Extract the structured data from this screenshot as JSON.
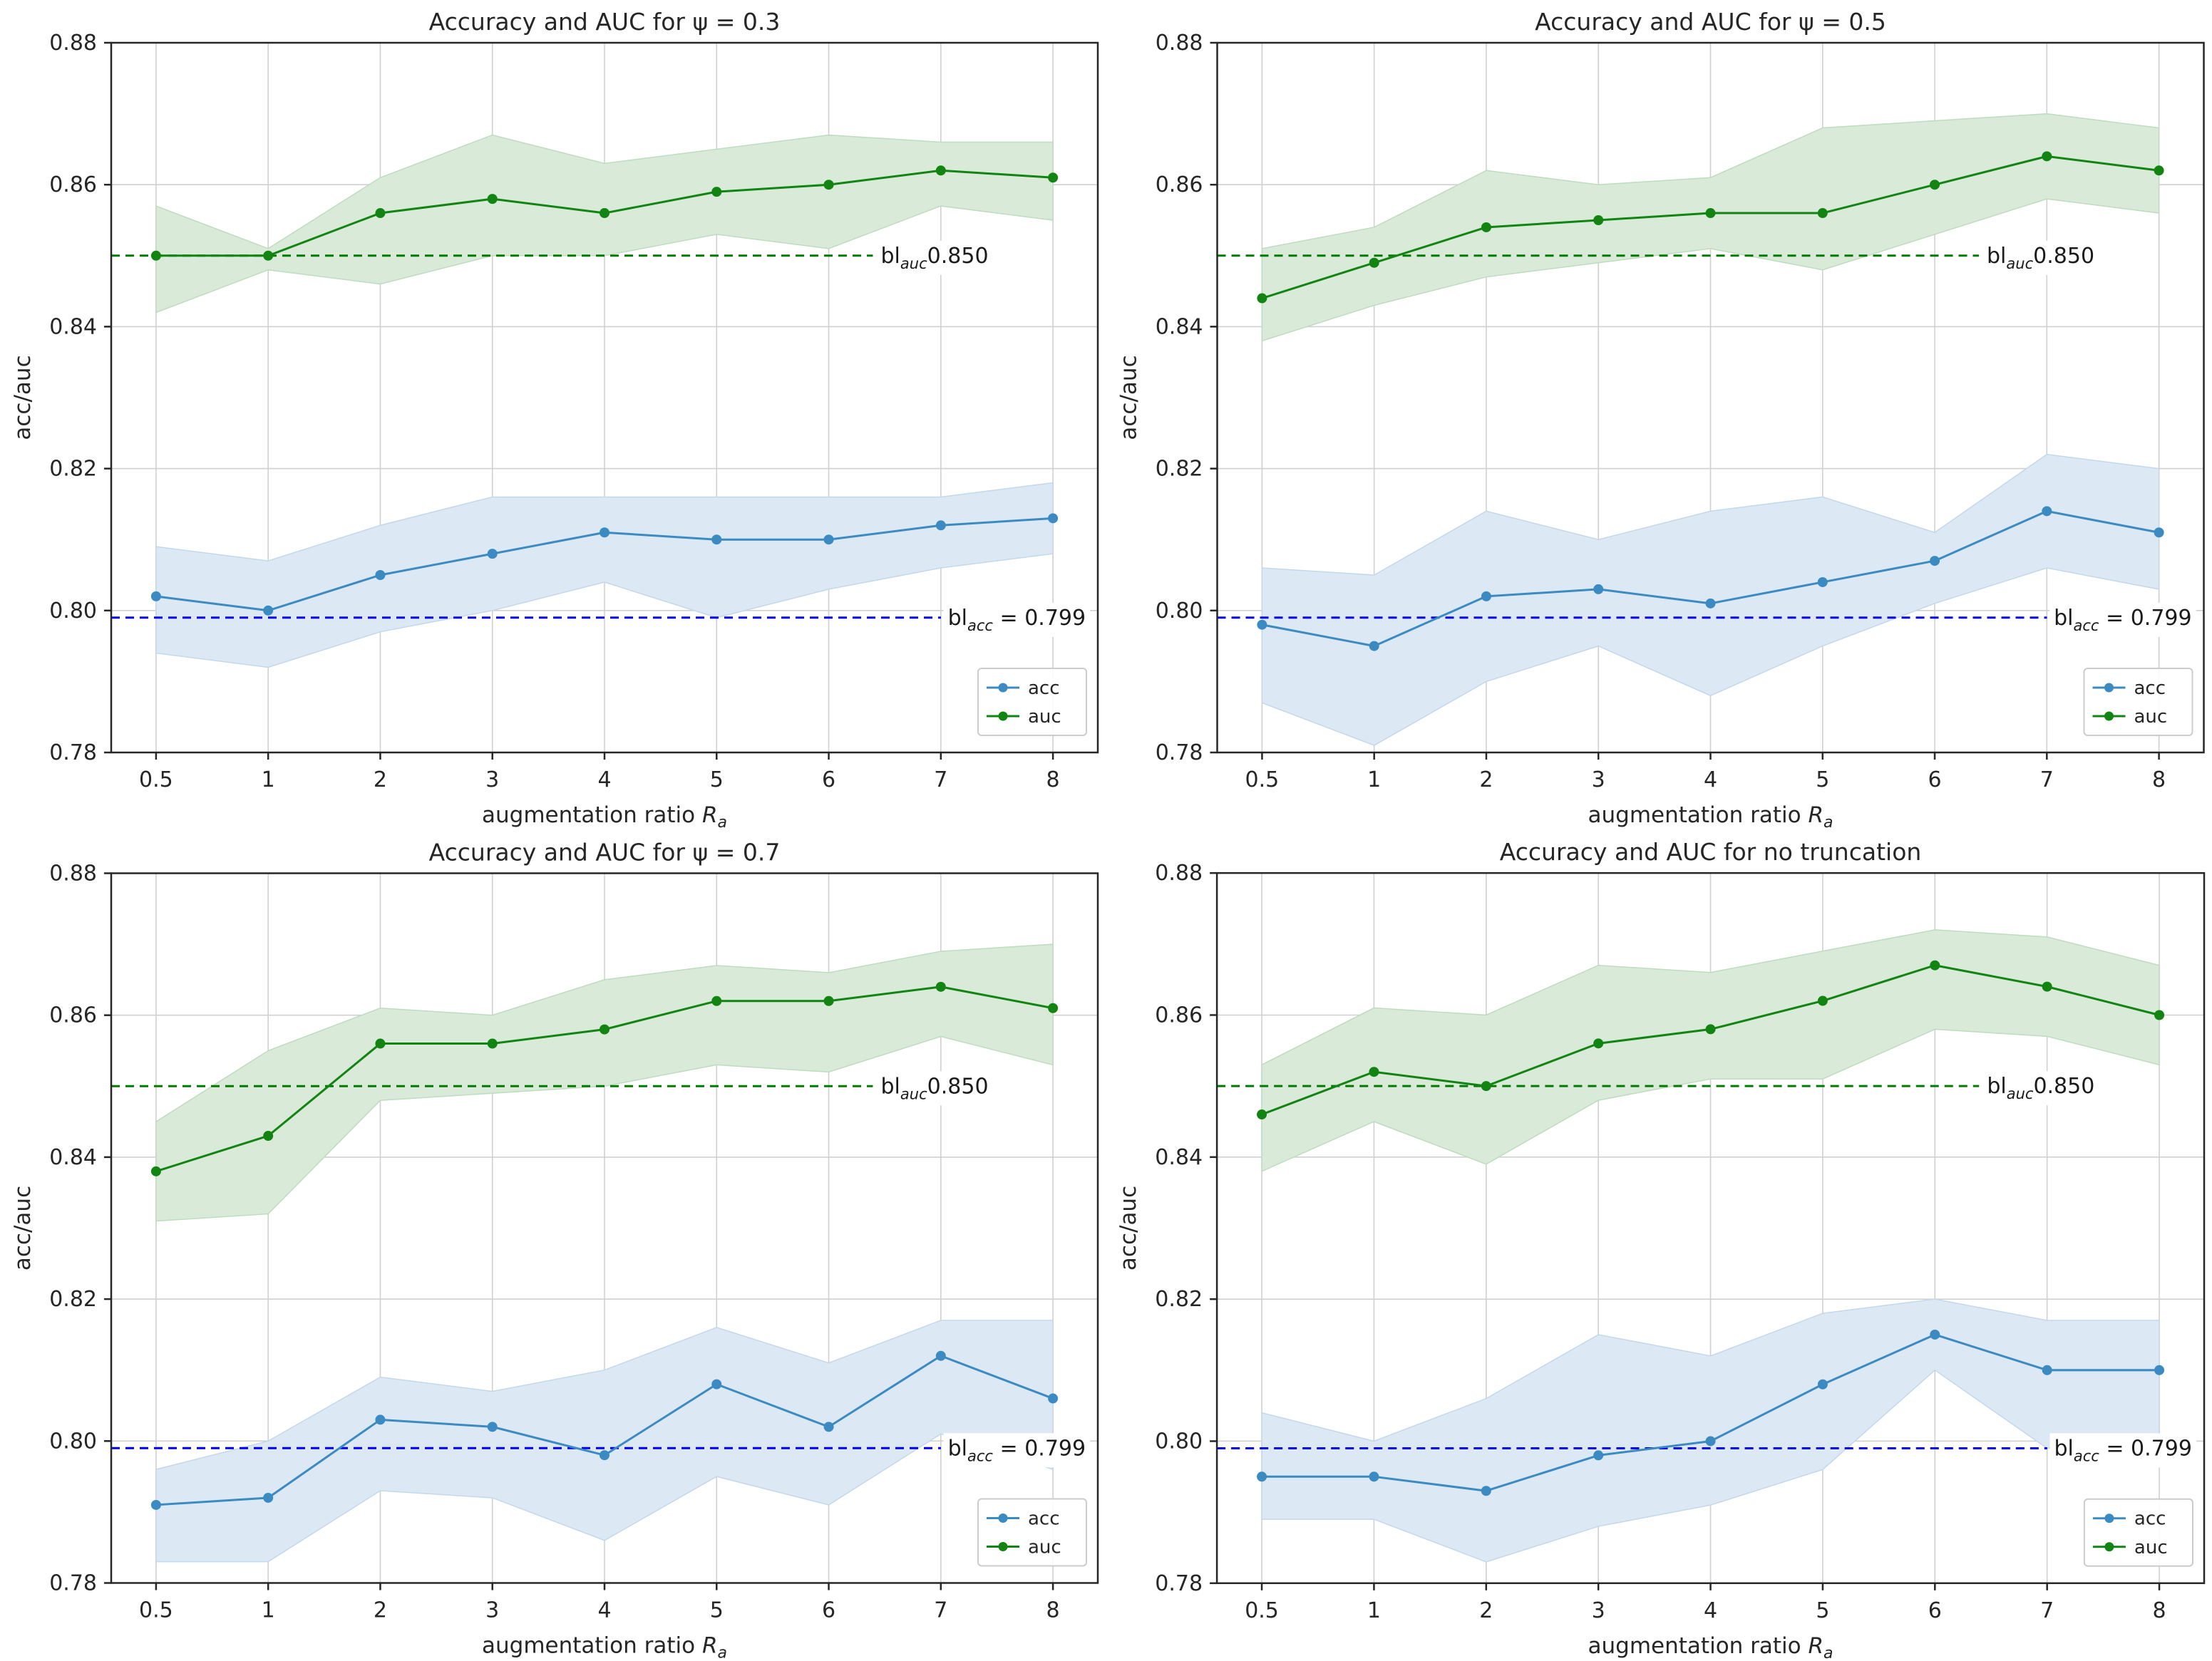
{
  "figure": {
    "ylabel": "acc/auc",
    "xlabel": {
      "prefix": "augmentation ratio ",
      "var": "R",
      "sub": "a"
    },
    "legend_entries": [
      "acc",
      "auc"
    ],
    "legend_position": "lower right",
    "colors": {
      "acc_line": "#3b8bc2",
      "acc_band": "#dce9f4",
      "acc_band_edge": "#c3d8ea",
      "auc_line": "#128412",
      "auc_band": "#d9ead9",
      "auc_band_edge": "#bedcbe",
      "baseline_acc": "#0000ee",
      "baseline_auc": "#007a00",
      "grid": "#d0d0d0",
      "spine": "#262626",
      "text": "#262626"
    }
  },
  "chart_data": [
    {
      "type": "line",
      "title": "Accuracy and AUC for ψ = 0.3",
      "xlabel": "augmentation ratio R_a",
      "ylabel": "acc/auc",
      "x": [
        0.5,
        1,
        2,
        3,
        4,
        5,
        6,
        7,
        8
      ],
      "ylim": [
        0.78,
        0.88
      ],
      "yticks": [
        "0.78",
        "0.80",
        "0.82",
        "0.84",
        "0.86",
        "0.88"
      ],
      "grid": true,
      "legend_position": "lower right",
      "series": [
        {
          "name": "acc",
          "values": [
            0.802,
            0.8,
            0.805,
            0.808,
            0.811,
            0.81,
            0.81,
            0.812,
            0.813
          ],
          "band_lower": [
            0.794,
            0.792,
            0.797,
            0.8,
            0.804,
            0.799,
            0.803,
            0.806,
            0.808
          ],
          "band_upper": [
            0.809,
            0.807,
            0.812,
            0.816,
            0.816,
            0.816,
            0.816,
            0.816,
            0.818
          ]
        },
        {
          "name": "auc",
          "values": [
            0.85,
            0.85,
            0.856,
            0.858,
            0.856,
            0.859,
            0.86,
            0.862,
            0.861
          ],
          "band_lower": [
            0.842,
            0.848,
            0.846,
            0.85,
            0.85,
            0.853,
            0.851,
            0.857,
            0.855
          ],
          "band_upper": [
            0.857,
            0.851,
            0.861,
            0.867,
            0.863,
            0.865,
            0.867,
            0.866,
            0.866
          ]
        }
      ],
      "baselines": [
        {
          "series": "auc",
          "value": 0.85,
          "label_prefix": "bl",
          "label_sub": "auc",
          "label_rest": "0.850"
        },
        {
          "series": "acc",
          "value": 0.799,
          "label_prefix": "bl",
          "label_sub": "acc",
          "label_rest": " = 0.799"
        }
      ]
    },
    {
      "type": "line",
      "title": "Accuracy and AUC for ψ = 0.5",
      "xlabel": "augmentation ratio R_a",
      "ylabel": "acc/auc",
      "x": [
        0.5,
        1,
        2,
        3,
        4,
        5,
        6,
        7,
        8
      ],
      "ylim": [
        0.78,
        0.88
      ],
      "yticks": [
        "0.78",
        "0.80",
        "0.82",
        "0.84",
        "0.86",
        "0.88"
      ],
      "grid": true,
      "legend_position": "lower right",
      "series": [
        {
          "name": "acc",
          "values": [
            0.798,
            0.795,
            0.802,
            0.803,
            0.801,
            0.804,
            0.807,
            0.814,
            0.811
          ],
          "band_lower": [
            0.787,
            0.781,
            0.79,
            0.795,
            0.788,
            0.795,
            0.801,
            0.806,
            0.803
          ],
          "band_upper": [
            0.806,
            0.805,
            0.814,
            0.81,
            0.814,
            0.816,
            0.811,
            0.822,
            0.82
          ]
        },
        {
          "name": "auc",
          "values": [
            0.844,
            0.849,
            0.854,
            0.855,
            0.856,
            0.856,
            0.86,
            0.864,
            0.862
          ],
          "band_lower": [
            0.838,
            0.843,
            0.847,
            0.849,
            0.851,
            0.848,
            0.853,
            0.858,
            0.856
          ],
          "band_upper": [
            0.851,
            0.854,
            0.862,
            0.86,
            0.861,
            0.868,
            0.869,
            0.87,
            0.868
          ]
        }
      ],
      "baselines": [
        {
          "series": "auc",
          "value": 0.85,
          "label_prefix": "bl",
          "label_sub": "auc",
          "label_rest": "0.850"
        },
        {
          "series": "acc",
          "value": 0.799,
          "label_prefix": "bl",
          "label_sub": "acc",
          "label_rest": " = 0.799"
        }
      ]
    },
    {
      "type": "line",
      "title": "Accuracy and AUC for ψ = 0.7",
      "xlabel": "augmentation ratio R_a",
      "ylabel": "acc/auc",
      "x": [
        0.5,
        1,
        2,
        3,
        4,
        5,
        6,
        7,
        8
      ],
      "ylim": [
        0.78,
        0.88
      ],
      "yticks": [
        "0.78",
        "0.80",
        "0.82",
        "0.84",
        "0.86",
        "0.88"
      ],
      "grid": true,
      "legend_position": "lower right",
      "series": [
        {
          "name": "acc",
          "values": [
            0.791,
            0.792,
            0.803,
            0.802,
            0.798,
            0.808,
            0.802,
            0.812,
            0.806
          ],
          "band_lower": [
            0.783,
            0.783,
            0.793,
            0.792,
            0.786,
            0.795,
            0.791,
            0.801,
            0.796
          ],
          "band_upper": [
            0.796,
            0.8,
            0.809,
            0.807,
            0.81,
            0.816,
            0.811,
            0.817,
            0.817
          ]
        },
        {
          "name": "auc",
          "values": [
            0.838,
            0.843,
            0.856,
            0.856,
            0.858,
            0.862,
            0.862,
            0.864,
            0.861
          ],
          "band_lower": [
            0.831,
            0.832,
            0.848,
            0.849,
            0.85,
            0.853,
            0.852,
            0.857,
            0.853
          ],
          "band_upper": [
            0.845,
            0.855,
            0.861,
            0.86,
            0.865,
            0.867,
            0.866,
            0.869,
            0.87
          ]
        }
      ],
      "baselines": [
        {
          "series": "auc",
          "value": 0.85,
          "label_prefix": "bl",
          "label_sub": "auc",
          "label_rest": "0.850"
        },
        {
          "series": "acc",
          "value": 0.799,
          "label_prefix": "bl",
          "label_sub": "acc",
          "label_rest": " = 0.799"
        }
      ]
    },
    {
      "type": "line",
      "title": "Accuracy and AUC for no truncation",
      "xlabel": "augmentation ratio R_a",
      "ylabel": "acc/auc",
      "x": [
        0.5,
        1,
        2,
        3,
        4,
        5,
        6,
        7,
        8
      ],
      "ylim": [
        0.78,
        0.88
      ],
      "yticks": [
        "0.78",
        "0.80",
        "0.82",
        "0.84",
        "0.86",
        "0.88"
      ],
      "grid": true,
      "legend_position": "lower right",
      "series": [
        {
          "name": "acc",
          "values": [
            0.795,
            0.795,
            0.793,
            0.798,
            0.8,
            0.808,
            0.815,
            0.81,
            0.81
          ],
          "band_lower": [
            0.789,
            0.789,
            0.783,
            0.788,
            0.791,
            0.796,
            0.81,
            0.799,
            0.801
          ],
          "band_upper": [
            0.804,
            0.8,
            0.806,
            0.815,
            0.812,
            0.818,
            0.82,
            0.817,
            0.817
          ]
        },
        {
          "name": "auc",
          "values": [
            0.846,
            0.852,
            0.85,
            0.856,
            0.858,
            0.862,
            0.867,
            0.864,
            0.86
          ],
          "band_lower": [
            0.838,
            0.845,
            0.839,
            0.848,
            0.851,
            0.851,
            0.858,
            0.857,
            0.853
          ],
          "band_upper": [
            0.853,
            0.861,
            0.86,
            0.867,
            0.866,
            0.869,
            0.872,
            0.871,
            0.867
          ]
        }
      ],
      "baselines": [
        {
          "series": "auc",
          "value": 0.85,
          "label_prefix": "bl",
          "label_sub": "auc",
          "label_rest": "0.850"
        },
        {
          "series": "acc",
          "value": 0.799,
          "label_prefix": "bl",
          "label_sub": "acc",
          "label_rest": " = 0.799"
        }
      ]
    }
  ]
}
